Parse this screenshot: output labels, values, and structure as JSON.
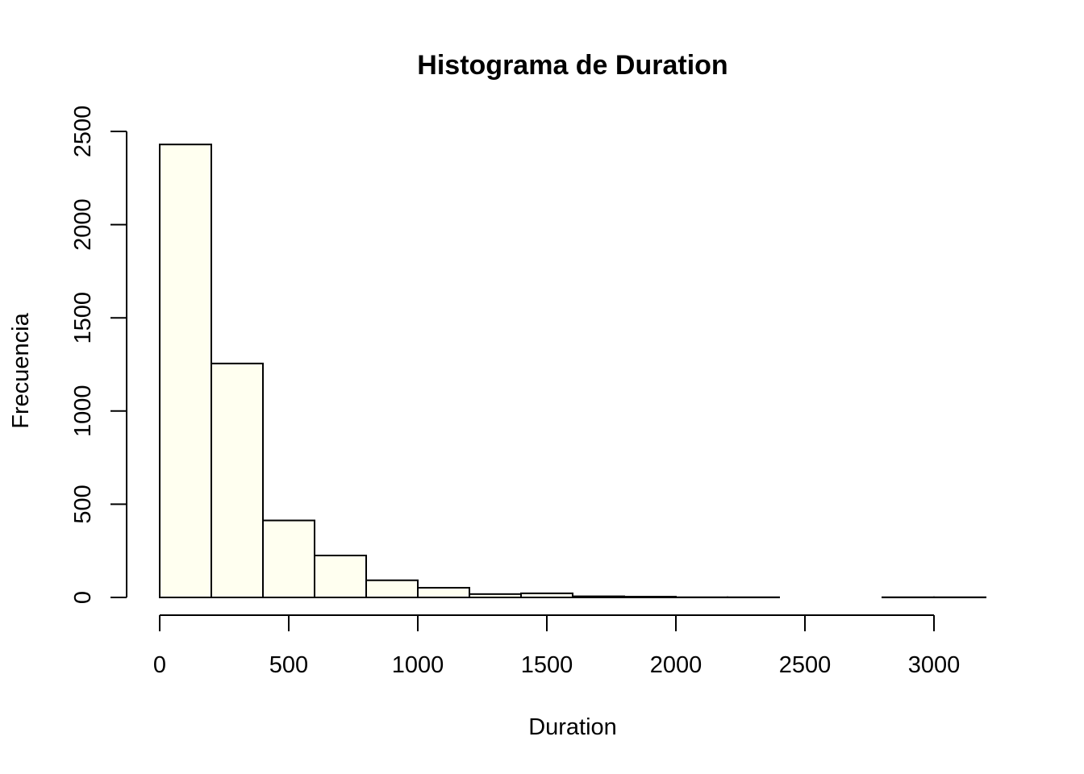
{
  "chart_data": {
    "type": "bar",
    "title": "Histograma de Duration",
    "xlabel": "Duration",
    "ylabel": "Frecuencia",
    "bin_width": 200,
    "bins": [
      {
        "start": 0,
        "end": 200,
        "count": 2430
      },
      {
        "start": 200,
        "end": 400,
        "count": 1255
      },
      {
        "start": 400,
        "end": 600,
        "count": 413
      },
      {
        "start": 600,
        "end": 800,
        "count": 225
      },
      {
        "start": 800,
        "end": 1000,
        "count": 92
      },
      {
        "start": 1000,
        "end": 1200,
        "count": 52
      },
      {
        "start": 1200,
        "end": 1400,
        "count": 18
      },
      {
        "start": 1400,
        "end": 1600,
        "count": 22
      },
      {
        "start": 1600,
        "end": 1800,
        "count": 6
      },
      {
        "start": 1800,
        "end": 2000,
        "count": 4
      },
      {
        "start": 2000,
        "end": 2200,
        "count": 1
      },
      {
        "start": 2200,
        "end": 2400,
        "count": 1
      },
      {
        "start": 2400,
        "end": 2600,
        "count": 0
      },
      {
        "start": 2600,
        "end": 2800,
        "count": 0
      },
      {
        "start": 2800,
        "end": 3000,
        "count": 1
      },
      {
        "start": 3000,
        "end": 3200,
        "count": 1
      }
    ],
    "xlim": [
      0,
      3200
    ],
    "ylim": [
      0,
      2500
    ],
    "x_ticks": [
      0,
      500,
      1000,
      1500,
      2000,
      2500,
      3000
    ],
    "y_ticks": [
      0,
      500,
      1000,
      1500,
      2000,
      2500
    ],
    "grid": false,
    "legend": "none",
    "bar_fill": "#FFFFF0",
    "bar_stroke": "#000000"
  }
}
